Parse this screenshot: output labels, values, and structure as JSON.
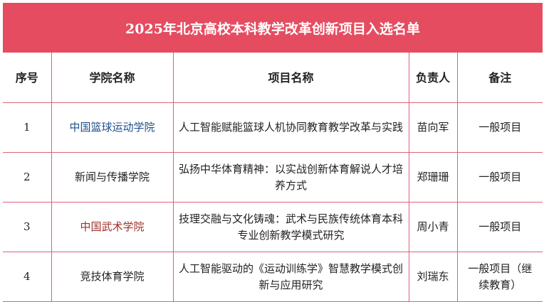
{
  "title": "2025年北京高校本科教学改革创新项目入选名单",
  "colors": {
    "header_bg": "#e54c60",
    "border": "#e0607a"
  },
  "columns": [
    "序号",
    "学院名称",
    "项目名称",
    "负责人",
    "备注"
  ],
  "rows": [
    {
      "no": "1",
      "college": "中国篮球运动学院",
      "project": "人工智能赋能篮球人机协同教育教学改革与实践",
      "leader": "苗向军",
      "note": "一般项目"
    },
    {
      "no": "2",
      "college": "新闻与传播学院",
      "project": "弘扬中华体育精神：以实战创新体育解说人才培养方式",
      "leader": "郑珊珊",
      "note": "一般项目"
    },
    {
      "no": "3",
      "college": "中国武术学院",
      "project": "技理交融与文化铸魂：武术与民族传统体育本科专业创新教学模式研究",
      "leader": "周小青",
      "note": "一般项目"
    },
    {
      "no": "4",
      "college": "竞技体育学院",
      "project": "人工智能驱动的《运动训练学》智慧教学模式创新与应用研究",
      "leader": "刘瑞东",
      "note": "一般项目（继续教育）"
    }
  ]
}
